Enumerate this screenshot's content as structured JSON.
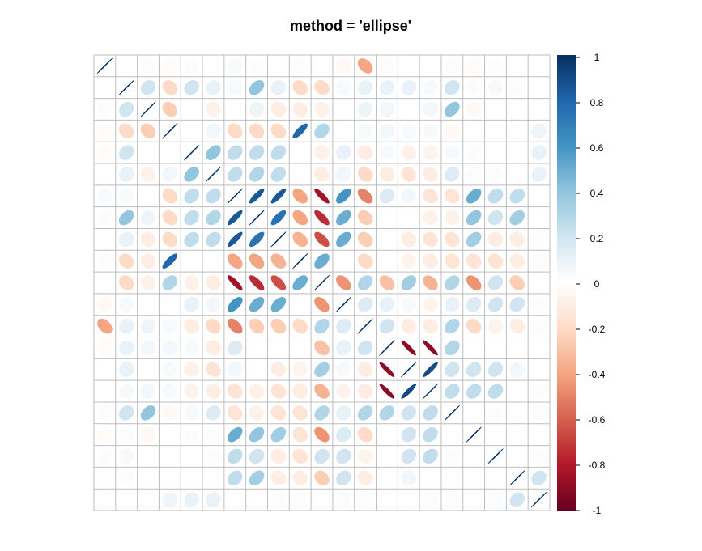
{
  "chart_data": {
    "type": "heatmap",
    "title": "method = 'ellipse'",
    "n_vars": 21,
    "cell_shape": "ellipse",
    "colorbar": {
      "position": "right",
      "range": [
        -1,
        1
      ],
      "ticks": [
        1,
        0.8,
        0.6,
        0.4,
        0.2,
        0,
        -0.2,
        -0.4,
        -0.6,
        -0.8,
        -1
      ],
      "tick_labels": [
        "1",
        "0.8",
        "0.6",
        "0.4",
        "0.2",
        "0",
        "-0.2",
        "-0.4",
        "-0.6",
        "-0.8",
        "-1"
      ],
      "colors": [
        "#67001F",
        "#B2182B",
        "#D6604D",
        "#F4A582",
        "#FDDBC7",
        "#FFFFFF",
        "#D1E5F0",
        "#92C5DE",
        "#4393C3",
        "#2166AC",
        "#053061"
      ]
    },
    "matrix": [
      [
        1,
        0,
        0.02,
        -0.02,
        -0.02,
        0,
        0.04,
        0.02,
        0,
        0.02,
        0,
        -0.04,
        -0.4,
        -0.02,
        0,
        0,
        0.02,
        -0.02,
        0.02,
        0,
        0
      ],
      [
        0,
        1,
        0.2,
        -0.2,
        0.2,
        0.1,
        0.04,
        0.4,
        0.1,
        -0.2,
        -0.2,
        0.04,
        0.1,
        0.1,
        0.1,
        0.04,
        0.2,
        0.02,
        0.04,
        0.02,
        0
      ],
      [
        0.02,
        0.2,
        1,
        -0.25,
        0,
        -0.08,
        0,
        0.08,
        -0.1,
        -0.1,
        -0.08,
        0,
        0.08,
        0.06,
        0,
        0.06,
        0.4,
        -0.04,
        0,
        0,
        0
      ],
      [
        -0.02,
        -0.2,
        -0.25,
        1,
        0,
        0.06,
        -0.2,
        -0.2,
        -0.2,
        0.8,
        0.3,
        0,
        0.04,
        0.06,
        0.04,
        0.04,
        -0.04,
        0,
        0,
        0,
        0.08
      ],
      [
        -0.02,
        0.2,
        0,
        0,
        1,
        0.4,
        0.25,
        0.25,
        0.25,
        0,
        -0.08,
        0.1,
        -0.1,
        0.04,
        -0.08,
        -0.06,
        0.04,
        0.02,
        0,
        0,
        0.1
      ],
      [
        0,
        0.1,
        -0.08,
        0.06,
        0.4,
        1,
        0.25,
        0.3,
        0.25,
        0,
        -0.1,
        0.06,
        -0.2,
        -0.1,
        -0.15,
        -0.1,
        0.15,
        0.02,
        0.02,
        0,
        0.1
      ],
      [
        0.04,
        0.04,
        0,
        -0.2,
        0.25,
        0.25,
        1,
        0.85,
        0.85,
        -0.4,
        -0.85,
        0.6,
        -0.5,
        0.15,
        0.06,
        -0.15,
        -0.15,
        0.5,
        0.25,
        0.25,
        0
      ],
      [
        0.02,
        0.4,
        0.08,
        -0.2,
        0.25,
        0.3,
        0.85,
        1,
        0.75,
        -0.4,
        -0.75,
        0.5,
        -0.25,
        0,
        0,
        -0.08,
        -0.08,
        0.4,
        0.2,
        0.35,
        0
      ],
      [
        0,
        0.1,
        -0.1,
        -0.2,
        0.25,
        0.25,
        0.85,
        0.75,
        1,
        -0.35,
        -0.65,
        0.5,
        -0.25,
        0,
        -0.1,
        -0.15,
        -0.15,
        0.35,
        -0.1,
        -0.1,
        0.02
      ],
      [
        0.02,
        -0.2,
        -0.1,
        0.8,
        0,
        0,
        -0.4,
        -0.4,
        -0.35,
        1,
        0.5,
        0,
        -0.2,
        0,
        -0.06,
        -0.1,
        -0.15,
        -0.15,
        -0.15,
        -0.1,
        0.02
      ],
      [
        0,
        -0.2,
        -0.08,
        0.3,
        -0.08,
        -0.1,
        -0.85,
        -0.75,
        -0.65,
        0.5,
        1,
        -0.45,
        0.3,
        -0.3,
        0.35,
        -0.35,
        0.3,
        -0.45,
        0.2,
        -0.25,
        0
      ],
      [
        -0.04,
        0.04,
        0,
        0,
        0.1,
        0.06,
        0.6,
        0.5,
        0.5,
        0,
        -0.45,
        1,
        0.15,
        0.1,
        0.04,
        -0.06,
        0.1,
        0.15,
        0.2,
        0.2,
        0.02
      ],
      [
        -0.4,
        0.1,
        0.08,
        0.04,
        -0.1,
        -0.2,
        -0.5,
        -0.25,
        -0.25,
        -0.2,
        0.3,
        0.15,
        1,
        0.2,
        -0.1,
        -0.1,
        0.3,
        -0.2,
        -0.06,
        -0.1,
        0.02
      ],
      [
        -0.02,
        0.1,
        0.06,
        0.06,
        0.04,
        -0.1,
        0.15,
        0,
        0,
        0,
        -0.3,
        0.1,
        0.2,
        1,
        -0.9,
        -0.9,
        0.3,
        0,
        0,
        0,
        0
      ],
      [
        0,
        0.1,
        0,
        0.04,
        -0.08,
        -0.15,
        0.06,
        0,
        -0.1,
        -0.06,
        0.35,
        0.04,
        -0.1,
        -0.9,
        1,
        0.9,
        0.2,
        0.2,
        0.2,
        0.06,
        0
      ],
      [
        0,
        0.04,
        0.06,
        0.04,
        -0.06,
        -0.1,
        -0.15,
        -0.08,
        -0.15,
        -0.1,
        -0.35,
        -0.06,
        -0.1,
        -0.9,
        0.9,
        1,
        0.25,
        0.25,
        0.25,
        0,
        0.02
      ],
      [
        0.02,
        0.2,
        0.4,
        -0.04,
        0.04,
        0.15,
        -0.15,
        -0.08,
        -0.15,
        -0.15,
        0.3,
        0.1,
        0.3,
        0.3,
        0.2,
        0.25,
        1,
        0,
        0.02,
        0,
        0.02
      ],
      [
        -0.02,
        0.02,
        -0.04,
        0,
        0.02,
        0.02,
        0.5,
        0.4,
        0.35,
        -0.15,
        -0.45,
        0.15,
        -0.2,
        0,
        0.2,
        0.25,
        0,
        1,
        0,
        0,
        0
      ],
      [
        0.02,
        0.04,
        0,
        0,
        0,
        0.02,
        0.25,
        0.2,
        -0.1,
        -0.15,
        0.2,
        0.2,
        -0.06,
        0,
        0.2,
        0.25,
        0.02,
        0,
        1,
        0,
        0.02
      ],
      [
        0,
        0.02,
        0,
        0,
        0,
        0,
        0.25,
        0.35,
        -0.1,
        -0.1,
        -0.25,
        0.2,
        -0.1,
        0,
        0.06,
        0,
        0,
        0,
        0,
        1,
        0.2
      ],
      [
        0,
        0,
        0,
        0.08,
        0.1,
        0.1,
        0,
        0,
        0.02,
        0.02,
        0,
        0.02,
        0.02,
        0,
        0,
        0.02,
        0.02,
        0,
        0.02,
        0.2,
        1
      ]
    ]
  }
}
